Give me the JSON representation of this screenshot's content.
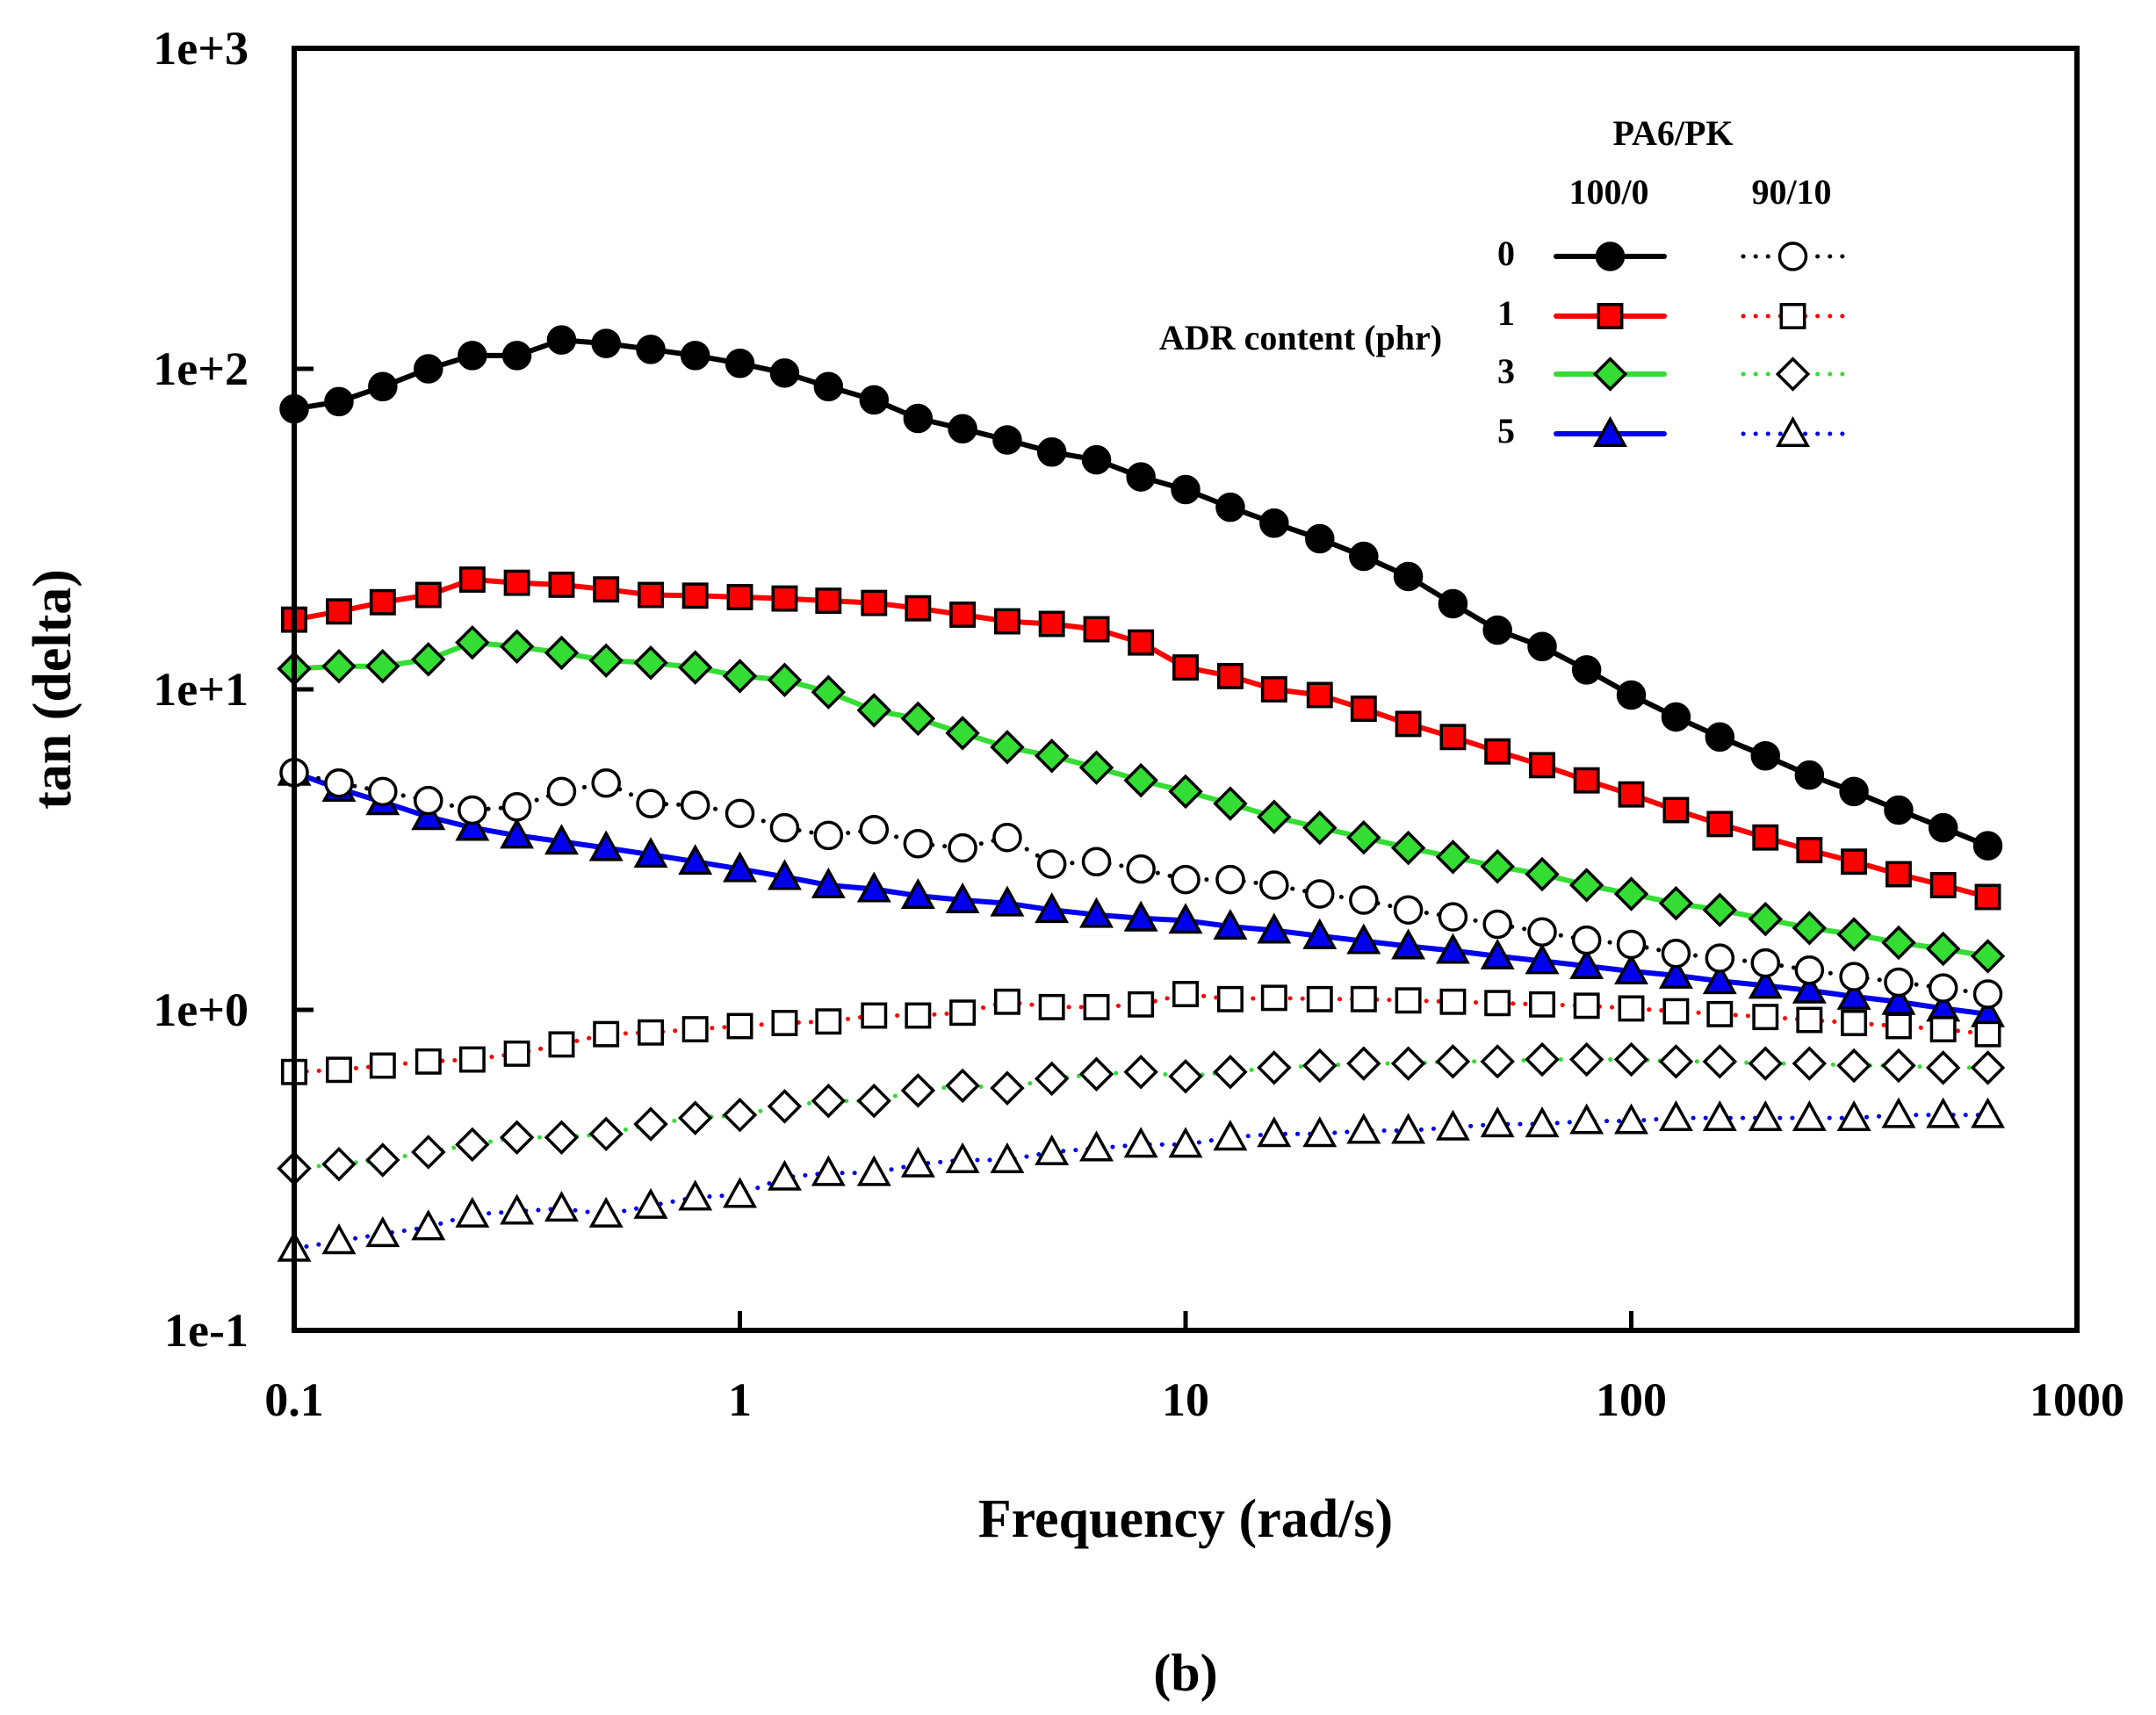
{
  "chart_data": {
    "type": "line",
    "title": "",
    "xlabel": "Frequency (rad/s)",
    "ylabel": "tan (delta)",
    "xscale": "log",
    "yscale": "log",
    "xlim": [
      0.1,
      1000
    ],
    "ylim": [
      0.1,
      1000
    ],
    "x_ticks": [
      "0.1",
      "1",
      "10",
      "100",
      "1000"
    ],
    "y_ticks": [
      "1e-1",
      "1e+0",
      "1e+1",
      "1e+2",
      "1e+3"
    ],
    "caption": "(b)",
    "legend": {
      "title": "PA6/PK",
      "column_headers": [
        "100/0",
        "90/10"
      ],
      "row_header": "ADR content (phr)",
      "rows": [
        "0",
        "1",
        "3",
        "5"
      ],
      "placement": "top-right"
    },
    "x": [
      0.1,
      0.126,
      0.158,
      0.2,
      0.251,
      0.316,
      0.398,
      0.501,
      0.631,
      0.794,
      1.0,
      1.26,
      1.58,
      2.0,
      2.51,
      3.16,
      3.98,
      5.01,
      6.31,
      7.94,
      10.0,
      12.6,
      15.8,
      20.0,
      25.1,
      31.6,
      39.8,
      50.1,
      63.1,
      79.4,
      100,
      126,
      158,
      200,
      251,
      316,
      398,
      501,
      631
    ],
    "series": [
      {
        "name": "100/0, ADR 0",
        "color": "#000000",
        "marker": "circle",
        "filled": true,
        "linestyle": "solid",
        "values": [
          75,
          79,
          88,
          100,
          110,
          110,
          123,
          120,
          115,
          110,
          104,
          97,
          88,
          80,
          70,
          65,
          60,
          55,
          52,
          46,
          42,
          37,
          33,
          29.5,
          26,
          22.5,
          18.5,
          15.3,
          13.6,
          11.5,
          9.6,
          8.2,
          7.1,
          6.2,
          5.4,
          4.8,
          4.2,
          3.7,
          3.25
        ]
      },
      {
        "name": "100/0, ADR 1",
        "color": "#ff0000",
        "marker": "square",
        "filled": true,
        "linestyle": "solid",
        "values": [
          16.5,
          17.5,
          18.7,
          19.7,
          22,
          21.5,
          21.2,
          20.5,
          19.7,
          19.6,
          19.4,
          19.2,
          18.9,
          18.6,
          17.9,
          17.1,
          16.3,
          16,
          15.4,
          14,
          11.7,
          11,
          10,
          9.6,
          8.7,
          7.8,
          7.1,
          6.4,
          5.8,
          5.2,
          4.7,
          4.2,
          3.8,
          3.45,
          3.15,
          2.9,
          2.65,
          2.45,
          2.25
        ]
      },
      {
        "name": "100/0, ADR 3",
        "color": "#33dd33",
        "marker": "diamond",
        "filled": true,
        "linestyle": "solid",
        "values": [
          11.6,
          11.8,
          11.8,
          12.4,
          14,
          13.6,
          13,
          12.3,
          12.1,
          11.7,
          11,
          10.7,
          9.8,
          8.6,
          8.1,
          7.3,
          6.6,
          6.2,
          5.7,
          5.2,
          4.8,
          4.4,
          4,
          3.7,
          3.45,
          3.2,
          3,
          2.8,
          2.65,
          2.45,
          2.3,
          2.15,
          2.05,
          1.92,
          1.8,
          1.72,
          1.62,
          1.55,
          1.47
        ]
      },
      {
        "name": "100/0, ADR 5",
        "color": "#0000ee",
        "marker": "triangle",
        "filled": true,
        "linestyle": "solid",
        "values": [
          5.5,
          4.9,
          4.45,
          4.0,
          3.7,
          3.5,
          3.35,
          3.2,
          3.05,
          2.9,
          2.75,
          2.6,
          2.45,
          2.38,
          2.27,
          2.2,
          2.15,
          2.05,
          1.98,
          1.93,
          1.9,
          1.82,
          1.77,
          1.7,
          1.64,
          1.58,
          1.53,
          1.47,
          1.42,
          1.37,
          1.32,
          1.28,
          1.23,
          1.19,
          1.15,
          1.1,
          1.06,
          1.01,
          0.97
        ]
      },
      {
        "name": "90/10, ADR 0",
        "color": "#000000",
        "marker": "circle",
        "filled": false,
        "linestyle": "dotted",
        "values": [
          5.5,
          5.1,
          4.8,
          4.5,
          4.2,
          4.3,
          4.8,
          5.1,
          4.4,
          4.35,
          4.1,
          3.7,
          3.5,
          3.65,
          3.3,
          3.2,
          3.45,
          2.85,
          2.9,
          2.75,
          2.55,
          2.55,
          2.45,
          2.3,
          2.2,
          2.05,
          1.95,
          1.85,
          1.75,
          1.65,
          1.6,
          1.5,
          1.45,
          1.4,
          1.33,
          1.27,
          1.22,
          1.17,
          1.12
        ]
      },
      {
        "name": "90/10, ADR 1",
        "color": "#ff0000",
        "marker": "square",
        "filled": false,
        "linestyle": "dotted",
        "values": [
          0.64,
          0.65,
          0.67,
          0.69,
          0.7,
          0.73,
          0.78,
          0.84,
          0.85,
          0.87,
          0.89,
          0.91,
          0.92,
          0.96,
          0.96,
          0.98,
          1.06,
          1.02,
          1.02,
          1.04,
          1.12,
          1.08,
          1.09,
          1.08,
          1.08,
          1.07,
          1.06,
          1.05,
          1.04,
          1.03,
          1.01,
          0.99,
          0.97,
          0.95,
          0.93,
          0.91,
          0.89,
          0.87,
          0.84
        ]
      },
      {
        "name": "90/10, ADR 3",
        "color": "#33dd33",
        "marker": "diamond",
        "filled": false,
        "linestyle": "dotted",
        "values": [
          0.32,
          0.33,
          0.34,
          0.36,
          0.38,
          0.4,
          0.4,
          0.41,
          0.44,
          0.46,
          0.47,
          0.5,
          0.52,
          0.52,
          0.56,
          0.58,
          0.57,
          0.61,
          0.63,
          0.64,
          0.62,
          0.64,
          0.66,
          0.67,
          0.68,
          0.68,
          0.69,
          0.69,
          0.7,
          0.7,
          0.7,
          0.69,
          0.69,
          0.68,
          0.68,
          0.67,
          0.67,
          0.66,
          0.66
        ]
      },
      {
        "name": "90/10, ADR 5",
        "color": "#0000ee",
        "marker": "triangle",
        "filled": false,
        "linestyle": "dotted",
        "values": [
          0.18,
          0.19,
          0.2,
          0.21,
          0.23,
          0.235,
          0.24,
          0.23,
          0.245,
          0.26,
          0.265,
          0.3,
          0.31,
          0.31,
          0.33,
          0.34,
          0.34,
          0.36,
          0.37,
          0.38,
          0.38,
          0.4,
          0.41,
          0.41,
          0.42,
          0.42,
          0.43,
          0.44,
          0.44,
          0.45,
          0.45,
          0.46,
          0.46,
          0.46,
          0.46,
          0.46,
          0.47,
          0.47,
          0.47
        ]
      }
    ]
  }
}
